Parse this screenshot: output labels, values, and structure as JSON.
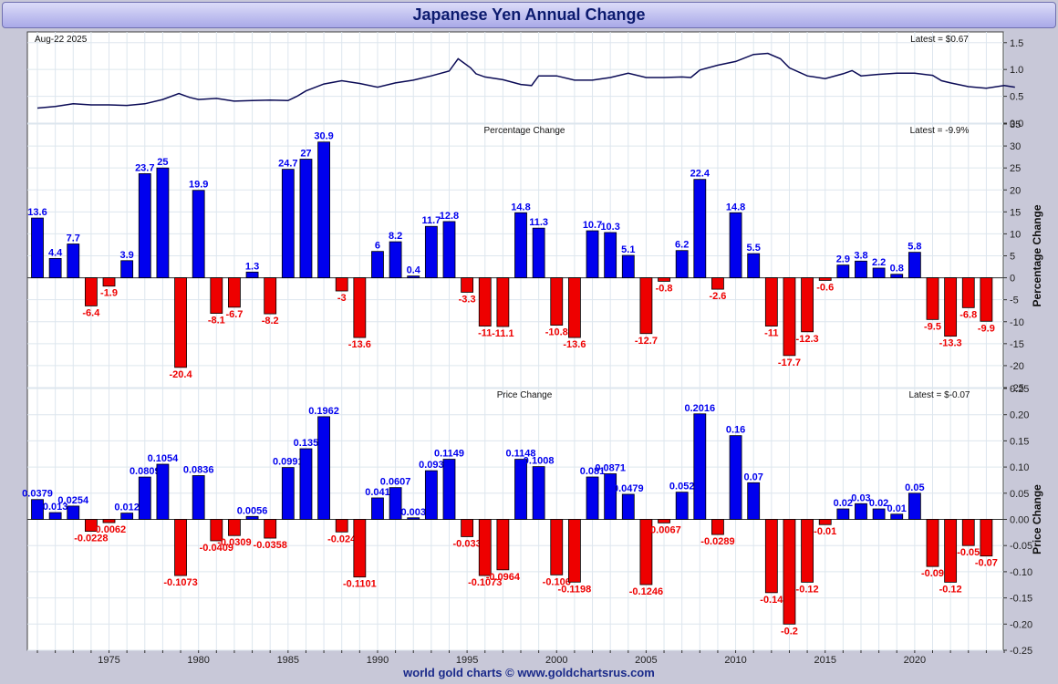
{
  "header": {
    "title": "Japanese Yen Annual Change"
  },
  "footer": {
    "credit": "world gold charts © www.goldchartsrus.com"
  },
  "colors": {
    "positive": "#0000ee",
    "negative": "#ee0000",
    "line": "#0a0a55",
    "grid": "#dde6ee"
  },
  "chart_data": [
    {
      "type": "line",
      "date_label": "Aug-22  2025",
      "latest_label": "Latest = $0.67",
      "ylim": [
        0,
        1.7
      ],
      "yticks": [
        "0.0",
        "0.5",
        "1.0",
        "1.5"
      ],
      "x_range": [
        1971,
        2025.6
      ],
      "series": [
        {
          "x": [
            1971.0,
            1972.0,
            1973.0,
            1974.0,
            1975.0,
            1976.0,
            1977.0,
            1978.0,
            1978.9,
            1979.5,
            1980.0,
            1981.0,
            1982.0,
            1983.0,
            1984.0,
            1985.0,
            1985.5,
            1986.0,
            1987.0,
            1988.0,
            1989.0,
            1990.0,
            1991.0,
            1992.0,
            1993.0,
            1994.0,
            1994.5,
            1995.2,
            1995.5,
            1996.0,
            1997.0,
            1998.0,
            1998.6,
            1999.0,
            2000.0,
            2001.0,
            2002.0,
            2003.0,
            2004.0,
            2005.0,
            2006.0,
            2007.0,
            2007.5,
            2008.0,
            2009.0,
            2010.0,
            2011.0,
            2011.8,
            2012.5,
            2013.0,
            2014.0,
            2015.0,
            2016.0,
            2016.5,
            2017.0,
            2018.0,
            2019.0,
            2020.0,
            2021.0,
            2021.5,
            2022.0,
            2023.0,
            2024.0,
            2025.0,
            2025.6
          ],
          "y": [
            0.28,
            0.31,
            0.36,
            0.34,
            0.34,
            0.33,
            0.36,
            0.44,
            0.55,
            0.48,
            0.44,
            0.46,
            0.41,
            0.42,
            0.43,
            0.42,
            0.5,
            0.6,
            0.73,
            0.79,
            0.74,
            0.67,
            0.75,
            0.8,
            0.88,
            0.97,
            1.2,
            1.03,
            0.92,
            0.86,
            0.81,
            0.72,
            0.7,
            0.88,
            0.88,
            0.8,
            0.8,
            0.85,
            0.93,
            0.85,
            0.85,
            0.86,
            0.85,
            0.99,
            1.08,
            1.15,
            1.28,
            1.3,
            1.2,
            1.03,
            0.88,
            0.83,
            0.92,
            0.98,
            0.88,
            0.91,
            0.93,
            0.93,
            0.89,
            0.79,
            0.75,
            0.68,
            0.65,
            0.7,
            0.67
          ]
        }
      ]
    },
    {
      "type": "bar",
      "title": "Percentage Change",
      "ylabel": "Percentage Change",
      "latest_label": "Latest = -9.9%",
      "ylim": [
        -25,
        35
      ],
      "yticks": [
        "-25",
        "-20",
        "-15",
        "-10",
        "-5",
        "0",
        "5",
        "10",
        "15",
        "20",
        "25",
        "30",
        "35"
      ],
      "categories": [
        "1971",
        "1972",
        "1973",
        "1974",
        "1975",
        "1976",
        "1977",
        "1978",
        "1979",
        "1980",
        "1981",
        "1982",
        "1983",
        "1984",
        "1985",
        "1986",
        "1987",
        "1988",
        "1989",
        "1990",
        "1991",
        "1992",
        "1993",
        "1994",
        "1995",
        "1996",
        "1997",
        "1998",
        "1999",
        "2000",
        "2001",
        "2002",
        "2003",
        "2004",
        "2005",
        "2006",
        "2007",
        "2008",
        "2009",
        "2010",
        "2011",
        "2012",
        "2013",
        "2014",
        "2015",
        "2016",
        "2017",
        "2018",
        "2019",
        "2020",
        "2021",
        "2022",
        "2023",
        "2024"
      ],
      "values": [
        13.6,
        4.4,
        7.7,
        -6.4,
        -1.9,
        3.9,
        23.7,
        25,
        -20.4,
        19.9,
        -8.1,
        -6.7,
        1.3,
        -8.2,
        24.7,
        27,
        30.9,
        -3,
        -13.6,
        6,
        8.2,
        0.4,
        11.7,
        12.8,
        -3.3,
        -11,
        -11.1,
        14.8,
        11.3,
        -10.8,
        -13.6,
        10.7,
        10.3,
        5.1,
        -12.7,
        -0.8,
        6.2,
        22.4,
        -2.6,
        14.8,
        5.5,
        -11,
        -17.7,
        -12.3,
        -0.6,
        2.9,
        3.8,
        2.2,
        0.8,
        5.8,
        -9.5,
        -13.3,
        -6.8,
        -9.9
      ],
      "labels": [
        "13.6",
        "4.4",
        "7.7",
        "-6.4",
        "-1.9",
        "3.9",
        "23.7",
        "25",
        "-20.4",
        "19.9",
        "-8.1",
        "-6.7",
        "1.3",
        "-8.2",
        "24.7",
        "27",
        "30.9",
        "-3",
        "-13.6",
        "6",
        "8.2",
        "0.4",
        "11.7",
        "12.8",
        "-3.3",
        "-11",
        "-11.1",
        "14.8",
        "11.3",
        "-10.8",
        "-13.6",
        "10.7",
        "10.3",
        "5.1",
        "-12.7",
        "-0.8",
        "6.2",
        "22.4",
        "-2.6",
        "14.8",
        "5.5",
        "-11",
        "-17.7",
        "-12.3",
        "-0.6",
        "2.9",
        "3.8",
        "2.2",
        "0.8",
        "5.8",
        "-9.5",
        "-13.3",
        "-6.8",
        "-9.9"
      ]
    },
    {
      "type": "bar",
      "title": "Price Change",
      "ylabel": "Price Change",
      "latest_label": "Latest = $-0.07",
      "ylim": [
        -0.25,
        0.25
      ],
      "yticks": [
        "-0.25",
        "-0.20",
        "-0.15",
        "-0.10",
        "-0.05",
        "0.00",
        "0.05",
        "0.10",
        "0.15",
        "0.20",
        "0.25"
      ],
      "categories": [
        "1971",
        "1972",
        "1973",
        "1974",
        "1975",
        "1976",
        "1977",
        "1978",
        "1979",
        "1980",
        "1981",
        "1982",
        "1983",
        "1984",
        "1985",
        "1986",
        "1987",
        "1988",
        "1989",
        "1990",
        "1991",
        "1992",
        "1993",
        "1994",
        "1995",
        "1996",
        "1997",
        "1998",
        "1999",
        "2000",
        "2001",
        "2002",
        "2003",
        "2004",
        "2005",
        "2006",
        "2007",
        "2008",
        "2009",
        "2010",
        "2011",
        "2012",
        "2013",
        "2014",
        "2015",
        "2016",
        "2017",
        "2018",
        "2019",
        "2020",
        "2021",
        "2022",
        "2023",
        "2024"
      ],
      "values": [
        0.0379,
        0.013,
        0.0254,
        -0.0228,
        -0.0062,
        0.012,
        0.0809,
        0.1054,
        -0.1073,
        0.0836,
        -0.0409,
        -0.0309,
        0.0056,
        -0.0358,
        0.0991,
        0.135,
        0.1962,
        -0.024,
        -0.1101,
        0.041,
        0.0607,
        0.003,
        0.093,
        0.1149,
        -0.033,
        -0.1073,
        -0.0964,
        0.1148,
        0.1008,
        -0.106,
        -0.1198,
        0.081,
        0.0871,
        0.0479,
        -0.1246,
        -0.0067,
        0.052,
        0.2016,
        -0.0289,
        0.16,
        0.07,
        -0.14,
        -0.2,
        -0.12,
        -0.01,
        0.02,
        0.03,
        0.02,
        0.01,
        0.05,
        -0.09,
        -0.12,
        -0.05,
        -0.07
      ],
      "labels": [
        "0.0379",
        "0.013",
        "0.0254",
        "-0.0228",
        "-0.0062",
        "0.012",
        "0.0809",
        "0.1054",
        "-0.1073",
        "0.0836",
        "-0.0409",
        "-0.0309",
        "0.0056",
        "-0.0358",
        "0.0991",
        "0.135",
        "0.1962",
        "-0.024",
        "-0.1101",
        "0.041",
        "0.0607",
        "0.003",
        "0.093",
        "0.1149",
        "-0.033",
        "-0.1073",
        "-0.0964",
        "0.1148",
        "0.1008",
        "-0.106",
        "-0.1198",
        "0.081",
        "0.0871",
        "0.0479",
        "-0.1246",
        "-0.0067",
        "0.052",
        "0.2016",
        "-0.0289",
        "0.16",
        "0.07",
        "-0.14",
        "-0.2",
        "-0.12",
        "-0.01",
        "0.02",
        "0.03",
        "0.02",
        "0.01",
        "0.05",
        "-0.09",
        "-0.12",
        "-0.05",
        "-0.07"
      ]
    }
  ],
  "x_axis": {
    "tick_labels": [
      "1975",
      "1980",
      "1985",
      "1990",
      "1995",
      "2000",
      "2005",
      "2010",
      "2015",
      "2020"
    ]
  }
}
